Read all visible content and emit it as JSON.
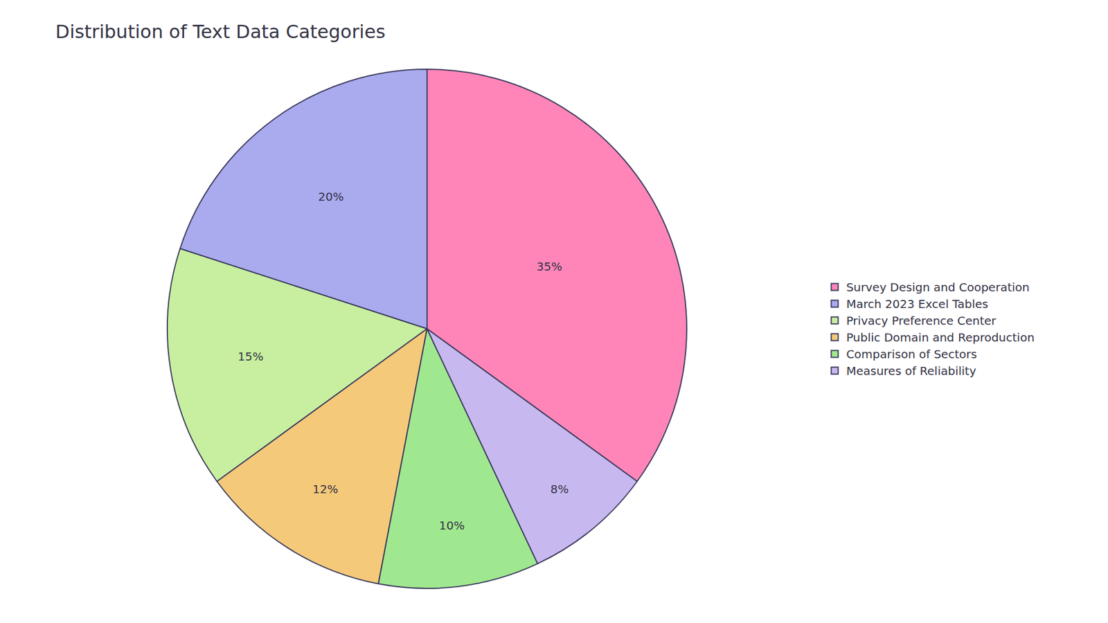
{
  "chart_data": {
    "type": "pie",
    "title": "Distribution of Text Data Categories",
    "categories": [
      "Survey Design and Cooperation",
      "March 2023 Excel Tables",
      "Privacy Preference Center",
      "Public Domain and Reproduction",
      "Comparison of Sectors",
      "Measures of Reliability"
    ],
    "values": [
      35,
      20,
      15,
      12,
      10,
      8
    ],
    "value_labels": [
      "35%",
      "20%",
      "15%",
      "12%",
      "10%",
      "8%"
    ],
    "colors": [
      "#FF85B8",
      "#AAAAEE",
      "#C8EFA0",
      "#F5C97A",
      "#A0E890",
      "#C8B8F0"
    ],
    "data_labels": true,
    "legend": "right"
  }
}
